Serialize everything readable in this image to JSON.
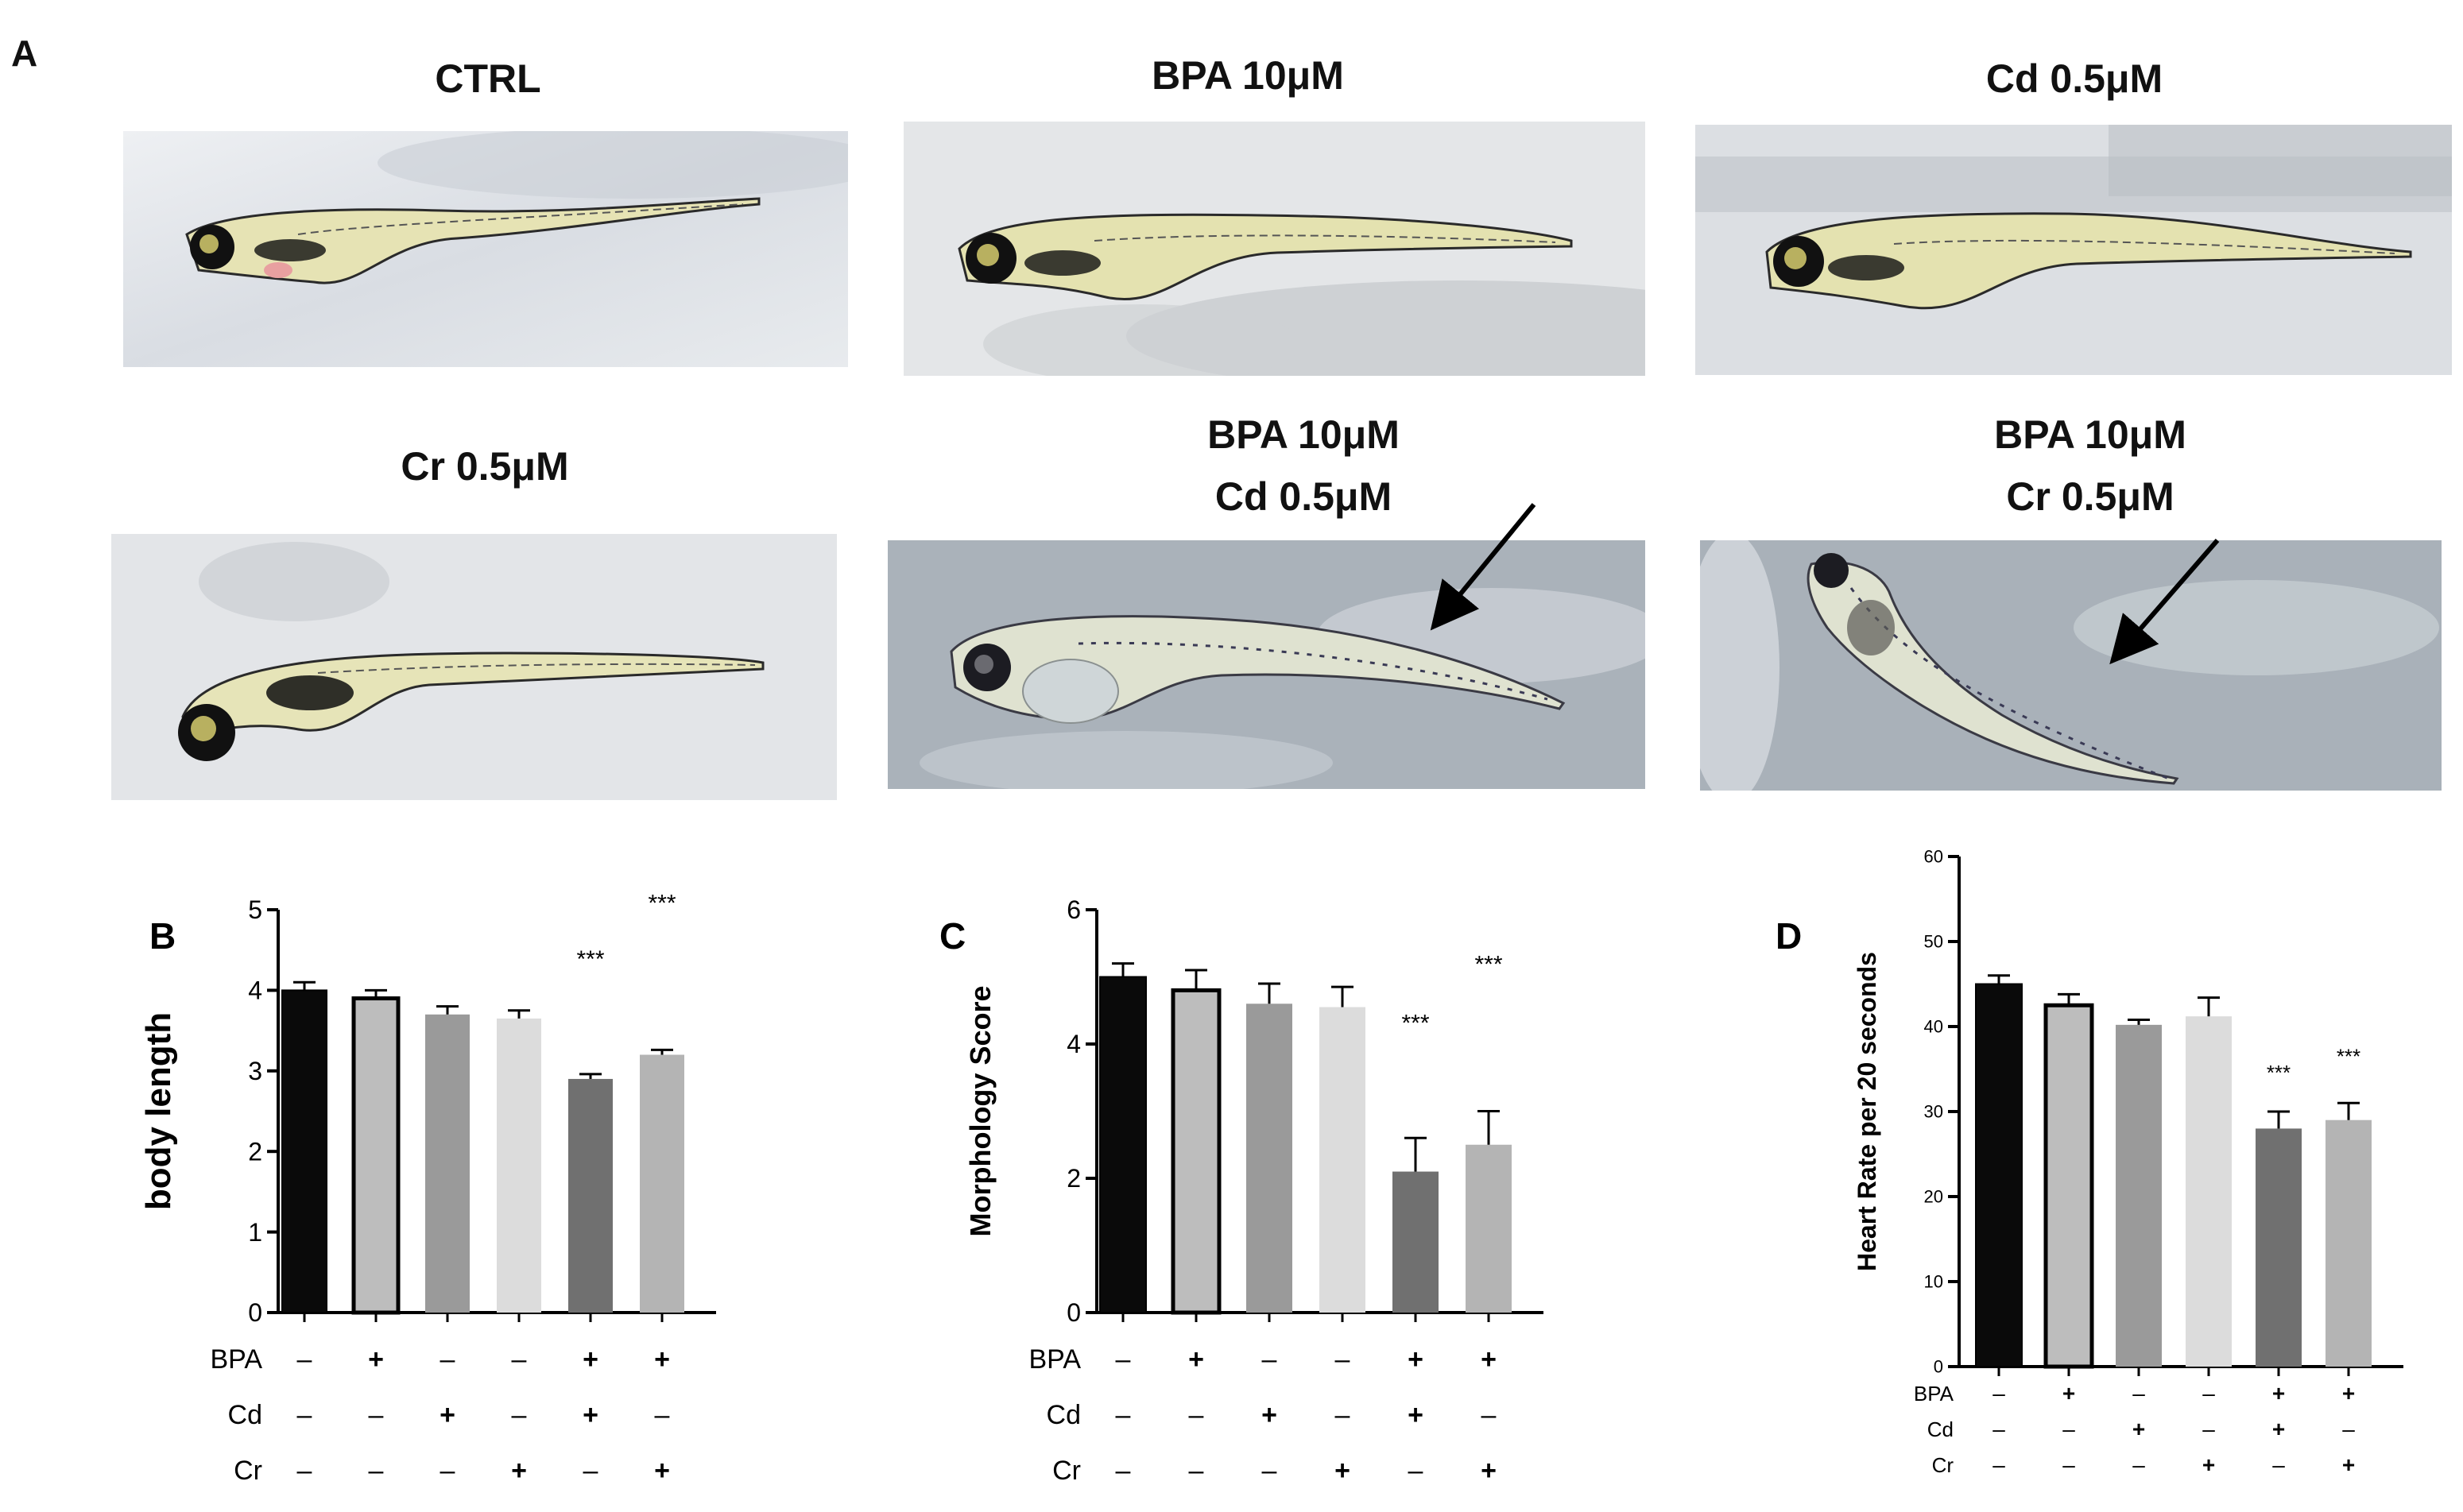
{
  "panel_a": {
    "letter": "A",
    "photos": [
      {
        "title_lines": [
          "CTRL"
        ],
        "arrow": false
      },
      {
        "title_lines": [
          "BPA 10μM"
        ],
        "arrow": false
      },
      {
        "title_lines": [
          "Cd 0.5μM"
        ],
        "arrow": false
      },
      {
        "title_lines": [
          "Cr 0.5μM"
        ],
        "arrow": false
      },
      {
        "title_lines": [
          "BPA 10μM",
          "Cd 0.5μM"
        ],
        "arrow": true
      },
      {
        "title_lines": [
          "BPA 10μM",
          "Cr 0.5μM"
        ],
        "arrow": true
      }
    ]
  },
  "colors": {
    "bars": [
      "#0a0a0a",
      "#bdbdbd",
      "#9a9a9a",
      "#dcdcdc",
      "#707070",
      "#b4b4b4"
    ],
    "outline": "#000000"
  },
  "chart_data": [
    {
      "type": "bar",
      "panel": "B",
      "ylabel": "body length",
      "ylim": [
        0,
        5
      ],
      "yticks": [
        0,
        1,
        2,
        3,
        4,
        5
      ],
      "values": [
        4.0,
        3.9,
        3.7,
        3.65,
        2.9,
        3.2
      ],
      "errors": [
        0.1,
        0.1,
        0.1,
        0.1,
        0.06,
        0.06
      ],
      "significance": [
        "",
        "",
        "",
        "",
        "***",
        "***"
      ],
      "treatments": [
        {
          "name": "BPA",
          "marks": [
            "–",
            "+",
            "–",
            "–",
            "+",
            "+"
          ]
        },
        {
          "name": "Cd",
          "marks": [
            "–",
            "–",
            "+",
            "–",
            "+",
            "–"
          ]
        },
        {
          "name": "Cr",
          "marks": [
            "–",
            "–",
            "–",
            "+",
            "–",
            "+"
          ]
        }
      ]
    },
    {
      "type": "bar",
      "panel": "C",
      "ylabel": "Morphology Score",
      "ylim": [
        0,
        6
      ],
      "yticks": [
        0,
        2,
        4,
        6
      ],
      "values": [
        5.0,
        4.8,
        4.6,
        4.55,
        2.1,
        2.5
      ],
      "errors": [
        0.2,
        0.3,
        0.3,
        0.3,
        0.5,
        0.5
      ],
      "significance": [
        "",
        "",
        "",
        "",
        "***",
        "***"
      ],
      "treatments": [
        {
          "name": "BPA",
          "marks": [
            "–",
            "+",
            "–",
            "–",
            "+",
            "+"
          ]
        },
        {
          "name": "Cd",
          "marks": [
            "–",
            "–",
            "+",
            "–",
            "+",
            "–"
          ]
        },
        {
          "name": "Cr",
          "marks": [
            "–",
            "–",
            "–",
            "+",
            "–",
            "+"
          ]
        }
      ]
    },
    {
      "type": "bar",
      "panel": "D",
      "ylabel": "Heart Rate per 20 seconds",
      "ylim": [
        0,
        60
      ],
      "yticks": [
        0,
        10,
        20,
        30,
        40,
        50,
        60
      ],
      "values": [
        45,
        42.5,
        40.2,
        41.2,
        28,
        29
      ],
      "errors": [
        1.0,
        1.3,
        0.6,
        2.2,
        2.0,
        2.0
      ],
      "significance": [
        "",
        "",
        "",
        "",
        "***",
        "***"
      ],
      "treatments": [
        {
          "name": "BPA",
          "marks": [
            "–",
            "+",
            "–",
            "–",
            "+",
            "+"
          ]
        },
        {
          "name": "Cd",
          "marks": [
            "–",
            "–",
            "+",
            "–",
            "+",
            "–"
          ]
        },
        {
          "name": "Cr",
          "marks": [
            "–",
            "–",
            "–",
            "+",
            "–",
            "+"
          ]
        }
      ]
    }
  ]
}
